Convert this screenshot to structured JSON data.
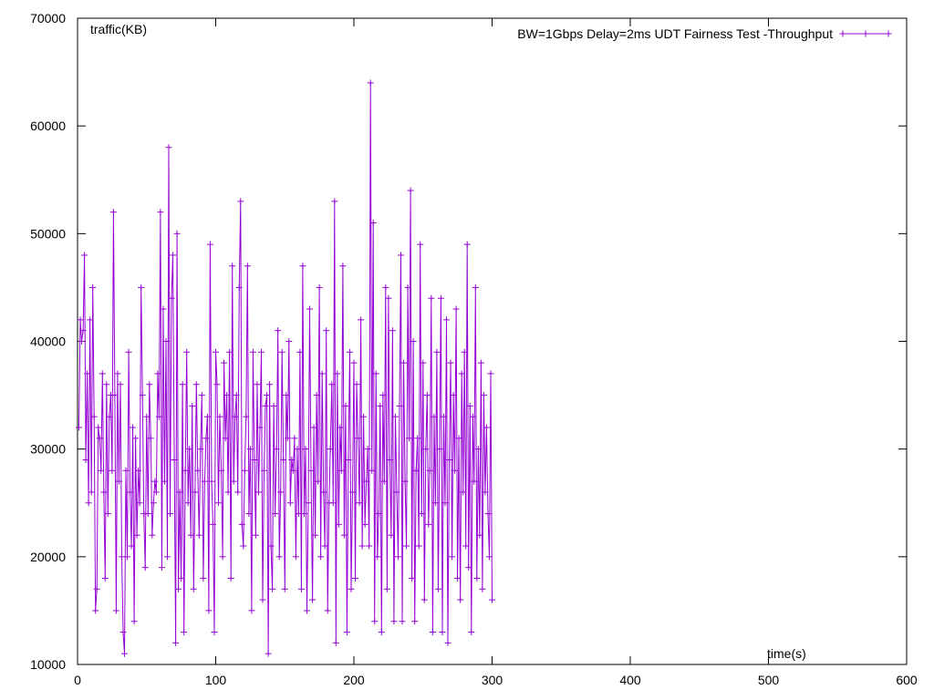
{
  "chart_data": {
    "type": "line",
    "title": "",
    "xlabel": "time(s)",
    "ylabel": "traffic(KB)",
    "xlim": [
      0,
      600
    ],
    "ylim": [
      10000,
      70000
    ],
    "x_ticks": [
      0,
      100,
      200,
      300,
      400,
      500,
      600
    ],
    "y_ticks": [
      10000,
      20000,
      30000,
      40000,
      50000,
      60000,
      70000
    ],
    "x_tick_labels": [
      "0",
      "100",
      "200",
      "300",
      "400",
      "500",
      "600"
    ],
    "y_tick_labels": [
      "10000",
      "20000",
      "30000",
      "40000",
      "50000",
      "60000",
      "70000"
    ],
    "grid": false,
    "legend_position": "top-right",
    "series_color": "#9400D3",
    "series": [
      {
        "name": "BW=1Gbps Delay=2ms UDT Fairness Test -Throughput",
        "marker": "plus",
        "points": [
          [
            1,
            32000
          ],
          [
            2,
            42000
          ],
          [
            3,
            40000
          ],
          [
            4,
            41000
          ],
          [
            5,
            48000
          ],
          [
            6,
            29000
          ],
          [
            7,
            37000
          ],
          [
            8,
            25000
          ],
          [
            9,
            42000
          ],
          [
            10,
            26000
          ],
          [
            11,
            45000
          ],
          [
            12,
            33000
          ],
          [
            13,
            15000
          ],
          [
            14,
            17000
          ],
          [
            15,
            32000
          ],
          [
            16,
            31000
          ],
          [
            17,
            28000
          ],
          [
            18,
            37000
          ],
          [
            19,
            26000
          ],
          [
            20,
            18000
          ],
          [
            21,
            36000
          ],
          [
            22,
            24000
          ],
          [
            23,
            33000
          ],
          [
            24,
            35000
          ],
          [
            25,
            28000
          ],
          [
            26,
            52000
          ],
          [
            27,
            35000
          ],
          [
            28,
            15000
          ],
          [
            29,
            37000
          ],
          [
            30,
            27000
          ],
          [
            31,
            36000
          ],
          [
            32,
            20000
          ],
          [
            33,
            13000
          ],
          [
            34,
            11000
          ],
          [
            35,
            28000
          ],
          [
            36,
            20000
          ],
          [
            37,
            39000
          ],
          [
            38,
            26000
          ],
          [
            39,
            21000
          ],
          [
            40,
            32000
          ],
          [
            41,
            14000
          ],
          [
            42,
            31000
          ],
          [
            43,
            22000
          ],
          [
            44,
            28000
          ],
          [
            45,
            25000
          ],
          [
            46,
            45000
          ],
          [
            47,
            35000
          ],
          [
            48,
            24000
          ],
          [
            49,
            19000
          ],
          [
            50,
            33000
          ],
          [
            51,
            24000
          ],
          [
            52,
            36000
          ],
          [
            53,
            31000
          ],
          [
            54,
            22000
          ],
          [
            55,
            25000
          ],
          [
            56,
            27000
          ],
          [
            57,
            26000
          ],
          [
            58,
            37000
          ],
          [
            59,
            33000
          ],
          [
            60,
            52000
          ],
          [
            61,
            19000
          ],
          [
            62,
            43000
          ],
          [
            63,
            27000
          ],
          [
            64,
            40000
          ],
          [
            65,
            20000
          ],
          [
            66,
            58000
          ],
          [
            67,
            24000
          ],
          [
            68,
            44000
          ],
          [
            69,
            48000
          ],
          [
            70,
            29000
          ],
          [
            71,
            12000
          ],
          [
            72,
            50000
          ],
          [
            73,
            17000
          ],
          [
            74,
            26000
          ],
          [
            75,
            18000
          ],
          [
            76,
            36000
          ],
          [
            77,
            13000
          ],
          [
            78,
            28000
          ],
          [
            79,
            39000
          ],
          [
            80,
            25000
          ],
          [
            81,
            30000
          ],
          [
            82,
            22000
          ],
          [
            83,
            34000
          ],
          [
            84,
            17000
          ],
          [
            85,
            26000
          ],
          [
            86,
            36000
          ],
          [
            87,
            28000
          ],
          [
            88,
            22000
          ],
          [
            89,
            30000
          ],
          [
            90,
            35000
          ],
          [
            91,
            18000
          ],
          [
            92,
            27000
          ],
          [
            93,
            31000
          ],
          [
            94,
            33000
          ],
          [
            95,
            15000
          ],
          [
            96,
            49000
          ],
          [
            97,
            27000
          ],
          [
            98,
            23000
          ],
          [
            99,
            13000
          ],
          [
            100,
            39000
          ],
          [
            101,
            36000
          ],
          [
            102,
            25000
          ],
          [
            103,
            33000
          ],
          [
            104,
            28000
          ],
          [
            105,
            20000
          ],
          [
            106,
            38000
          ],
          [
            107,
            31000
          ],
          [
            108,
            35000
          ],
          [
            109,
            26000
          ],
          [
            110,
            39000
          ],
          [
            111,
            18000
          ],
          [
            112,
            47000
          ],
          [
            113,
            27000
          ],
          [
            114,
            33000
          ],
          [
            115,
            35000
          ],
          [
            116,
            26000
          ],
          [
            117,
            45000
          ],
          [
            118,
            53000
          ],
          [
            119,
            23000
          ],
          [
            120,
            21000
          ],
          [
            121,
            28000
          ],
          [
            122,
            33000
          ],
          [
            123,
            47000
          ],
          [
            124,
            24000
          ],
          [
            125,
            30000
          ],
          [
            126,
            15000
          ],
          [
            127,
            39000
          ],
          [
            128,
            29000
          ],
          [
            129,
            22000
          ],
          [
            130,
            36000
          ],
          [
            131,
            26000
          ],
          [
            132,
            32000
          ],
          [
            133,
            39000
          ],
          [
            134,
            16000
          ],
          [
            135,
            28000
          ],
          [
            136,
            34000
          ],
          [
            137,
            35000
          ],
          [
            138,
            11000
          ],
          [
            139,
            36000
          ],
          [
            140,
            21000
          ],
          [
            141,
            17000
          ],
          [
            142,
            34000
          ],
          [
            143,
            24000
          ],
          [
            144,
            30000
          ],
          [
            145,
            41000
          ],
          [
            146,
            20000
          ],
          [
            147,
            26000
          ],
          [
            148,
            39000
          ],
          [
            149,
            29000
          ],
          [
            150,
            17000
          ],
          [
            151,
            35000
          ],
          [
            152,
            31000
          ],
          [
            153,
            40000
          ],
          [
            154,
            25000
          ],
          [
            155,
            29000
          ],
          [
            156,
            28000
          ],
          [
            157,
            31000
          ],
          [
            158,
            20000
          ],
          [
            159,
            30000
          ],
          [
            160,
            24000
          ],
          [
            161,
            39000
          ],
          [
            162,
            17000
          ],
          [
            163,
            47000
          ],
          [
            164,
            24000
          ],
          [
            165,
            30000
          ],
          [
            166,
            15000
          ],
          [
            167,
            25000
          ],
          [
            168,
            43000
          ],
          [
            169,
            28000
          ],
          [
            170,
            16000
          ],
          [
            171,
            32000
          ],
          [
            172,
            22000
          ],
          [
            173,
            35000
          ],
          [
            174,
            27000
          ],
          [
            175,
            45000
          ],
          [
            176,
            20000
          ],
          [
            177,
            37000
          ],
          [
            178,
            26000
          ],
          [
            179,
            21000
          ],
          [
            180,
            41000
          ],
          [
            181,
            15000
          ],
          [
            182,
            25000
          ],
          [
            183,
            30000
          ],
          [
            184,
            36000
          ],
          [
            185,
            25000
          ],
          [
            186,
            53000
          ],
          [
            187,
            12000
          ],
          [
            188,
            37000
          ],
          [
            189,
            23000
          ],
          [
            190,
            32000
          ],
          [
            191,
            28000
          ],
          [
            192,
            47000
          ],
          [
            193,
            22000
          ],
          [
            194,
            34000
          ],
          [
            195,
            13000
          ],
          [
            196,
            29000
          ],
          [
            197,
            39000
          ],
          [
            198,
            17000
          ],
          [
            199,
            26000
          ],
          [
            200,
            38000
          ],
          [
            201,
            18000
          ],
          [
            202,
            36000
          ],
          [
            203,
            31000
          ],
          [
            204,
            25000
          ],
          [
            205,
            42000
          ],
          [
            206,
            21000
          ],
          [
            207,
            33000
          ],
          [
            208,
            23000
          ],
          [
            209,
            27000
          ],
          [
            210,
            30000
          ],
          [
            211,
            21000
          ],
          [
            212,
            64000
          ],
          [
            213,
            28000
          ],
          [
            214,
            51000
          ],
          [
            215,
            14000
          ],
          [
            216,
            37000
          ],
          [
            217,
            20000
          ],
          [
            218,
            24000
          ],
          [
            219,
            34000
          ],
          [
            220,
            13000
          ],
          [
            221,
            35000
          ],
          [
            222,
            27000
          ],
          [
            223,
            45000
          ],
          [
            224,
            17000
          ],
          [
            225,
            44000
          ],
          [
            226,
            29000
          ],
          [
            227,
            22000
          ],
          [
            228,
            41000
          ],
          [
            229,
            14000
          ],
          [
            230,
            33000
          ],
          [
            231,
            26000
          ],
          [
            232,
            20000
          ],
          [
            233,
            34000
          ],
          [
            234,
            48000
          ],
          [
            235,
            14000
          ],
          [
            236,
            38000
          ],
          [
            237,
            27000
          ],
          [
            238,
            21000
          ],
          [
            239,
            45000
          ],
          [
            240,
            31000
          ],
          [
            241,
            54000
          ],
          [
            242,
            18000
          ],
          [
            243,
            40000
          ],
          [
            244,
            14000
          ],
          [
            245,
            28000
          ],
          [
            246,
            31000
          ],
          [
            247,
            21000
          ],
          [
            248,
            49000
          ],
          [
            249,
            24000
          ],
          [
            250,
            38000
          ],
          [
            251,
            16000
          ],
          [
            252,
            30000
          ],
          [
            253,
            35000
          ],
          [
            254,
            23000
          ],
          [
            255,
            28000
          ],
          [
            256,
            44000
          ],
          [
            257,
            13000
          ],
          [
            258,
            33000
          ],
          [
            259,
            25000
          ],
          [
            260,
            39000
          ],
          [
            261,
            17000
          ],
          [
            262,
            30000
          ],
          [
            263,
            44000
          ],
          [
            264,
            13000
          ],
          [
            265,
            33000
          ],
          [
            266,
            25000
          ],
          [
            267,
            42000
          ],
          [
            268,
            12000
          ],
          [
            269,
            29000
          ],
          [
            270,
            38000
          ],
          [
            271,
            20000
          ],
          [
            272,
            35000
          ],
          [
            273,
            28000
          ],
          [
            274,
            43000
          ],
          [
            275,
            18000
          ],
          [
            276,
            31000
          ],
          [
            277,
            16000
          ],
          [
            278,
            37000
          ],
          [
            279,
            26000
          ],
          [
            280,
            39000
          ],
          [
            281,
            21000
          ],
          [
            282,
            49000
          ],
          [
            283,
            19000
          ],
          [
            284,
            34000
          ],
          [
            285,
            13000
          ],
          [
            286,
            33000
          ],
          [
            287,
            27000
          ],
          [
            288,
            45000
          ],
          [
            289,
            18000
          ],
          [
            290,
            30000
          ],
          [
            291,
            22000
          ],
          [
            292,
            38000
          ],
          [
            293,
            17000
          ],
          [
            294,
            35000
          ],
          [
            295,
            26000
          ],
          [
            296,
            32000
          ],
          [
            297,
            24000
          ],
          [
            298,
            20000
          ],
          [
            299,
            37000
          ],
          [
            300,
            16000
          ]
        ]
      }
    ]
  }
}
